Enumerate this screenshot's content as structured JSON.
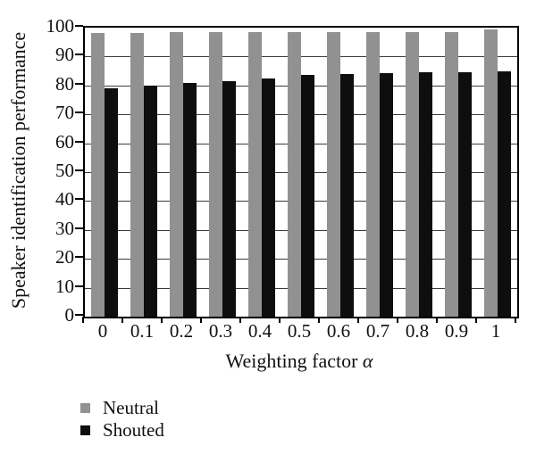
{
  "chart_data": {
    "type": "bar",
    "title": "",
    "xlabel": "Weighting factor α",
    "ylabel": "Speaker identification performance",
    "categories": [
      "0",
      "0.1",
      "0.2",
      "0.3",
      "0.4",
      "0.5",
      "0.6",
      "0.7",
      "0.8",
      "0.9",
      "1"
    ],
    "series": [
      {
        "name": "Neutral",
        "color": "#919191",
        "values": [
          98,
          98,
          98.5,
          98.5,
          98.5,
          98.5,
          98.5,
          98.5,
          98.5,
          98.5,
          99.5
        ]
      },
      {
        "name": "Shouted",
        "color": "#0e0e0e",
        "values": [
          79,
          80,
          81,
          81.5,
          82.5,
          83.5,
          84,
          84.2,
          84.5,
          84.7,
          85
        ]
      }
    ],
    "ylim": [
      0,
      100
    ],
    "yticks": [
      "0",
      "10",
      "20",
      "30",
      "40",
      "50",
      "60",
      "70",
      "80",
      "90",
      "100"
    ],
    "grid": "horizontal",
    "legend_position": "bottom-left"
  },
  "labels": {
    "xlabel_text": "Weighting factor",
    "xlabel_symbol": "α"
  }
}
